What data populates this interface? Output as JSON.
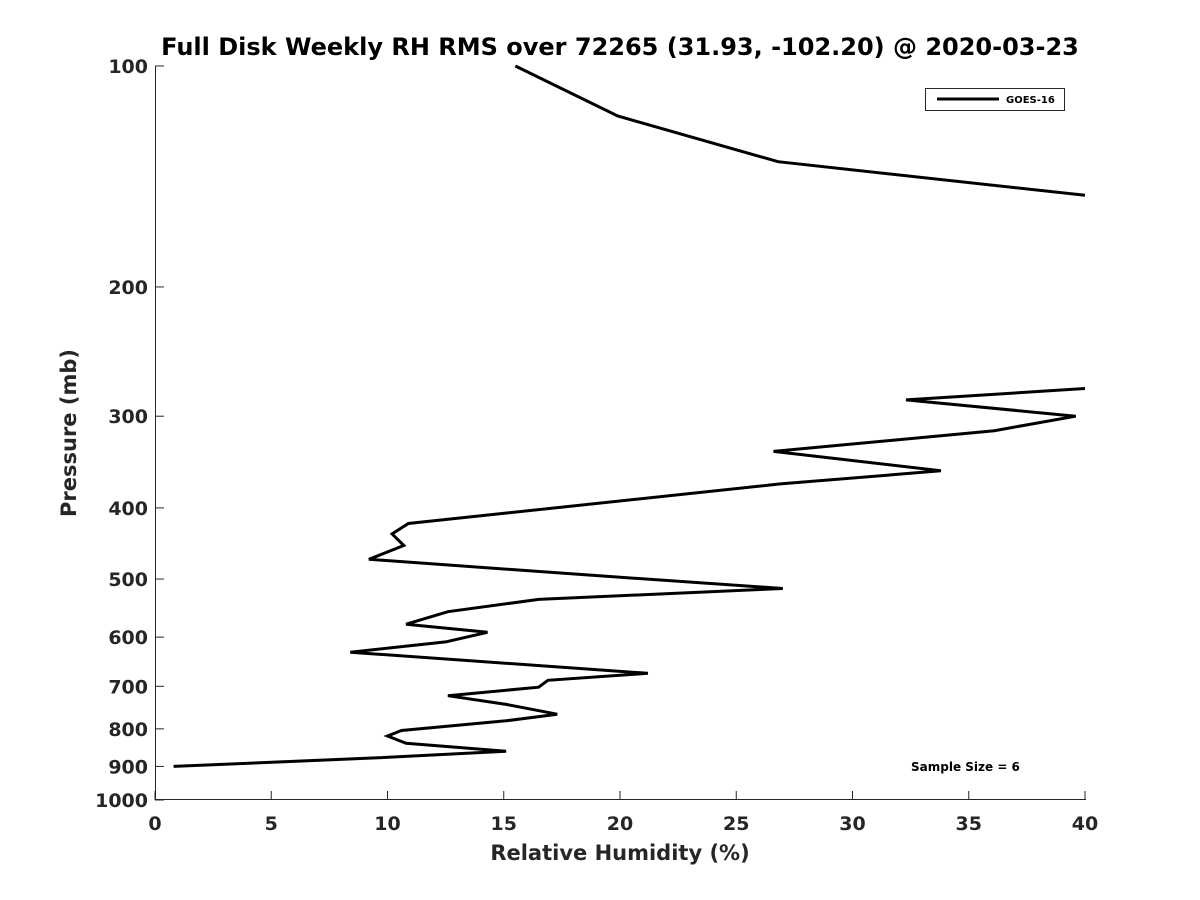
{
  "chart_data": {
    "type": "line",
    "title": "Full Disk Weekly RH RMS over 72265 (31.93, -102.20) @ 2020-03-23",
    "xlabel": "Relative Humidity (%)",
    "ylabel": "Pressure (mb)",
    "xlim": [
      0,
      40
    ],
    "ylim": [
      1000,
      100
    ],
    "yscale": "log",
    "xticks": [
      0,
      5,
      10,
      15,
      20,
      25,
      30,
      35,
      40
    ],
    "yticks": [
      100,
      200,
      300,
      400,
      500,
      600,
      700,
      800,
      900,
      1000
    ],
    "legend_position": "top-right",
    "annotation": "Sample Size = 6",
    "series": [
      {
        "name": "GOES-16",
        "color": "#000000",
        "points": [
          [
            15.5,
            100
          ],
          [
            19.9,
            117
          ],
          [
            26.8,
            135
          ],
          [
            40.0,
            150
          ],
          [
            null,
            null
          ],
          [
            40.0,
            275
          ],
          [
            32.3,
            285
          ],
          [
            39.6,
            300
          ],
          [
            36.1,
            314
          ],
          [
            26.6,
            335
          ],
          [
            33.8,
            356
          ],
          [
            26.9,
            371
          ],
          [
            10.9,
            420
          ],
          [
            10.2,
            434
          ],
          [
            10.7,
            450
          ],
          [
            9.2,
            470
          ],
          [
            19.1,
            495
          ],
          [
            27.0,
            515
          ],
          [
            16.5,
            533
          ],
          [
            12.6,
            554
          ],
          [
            10.8,
            576
          ],
          [
            14.3,
            591
          ],
          [
            12.5,
            609
          ],
          [
            8.4,
            629
          ],
          [
            21.2,
            672
          ],
          [
            16.9,
            687
          ],
          [
            16.5,
            702
          ],
          [
            12.6,
            721
          ],
          [
            15.1,
            741
          ],
          [
            17.3,
            764
          ],
          [
            15.1,
            780
          ],
          [
            10.6,
            804
          ],
          [
            10.0,
            818
          ],
          [
            10.8,
            837
          ],
          [
            15.1,
            858
          ],
          [
            9.6,
            876
          ],
          [
            0.8,
            900
          ]
        ]
      }
    ]
  }
}
